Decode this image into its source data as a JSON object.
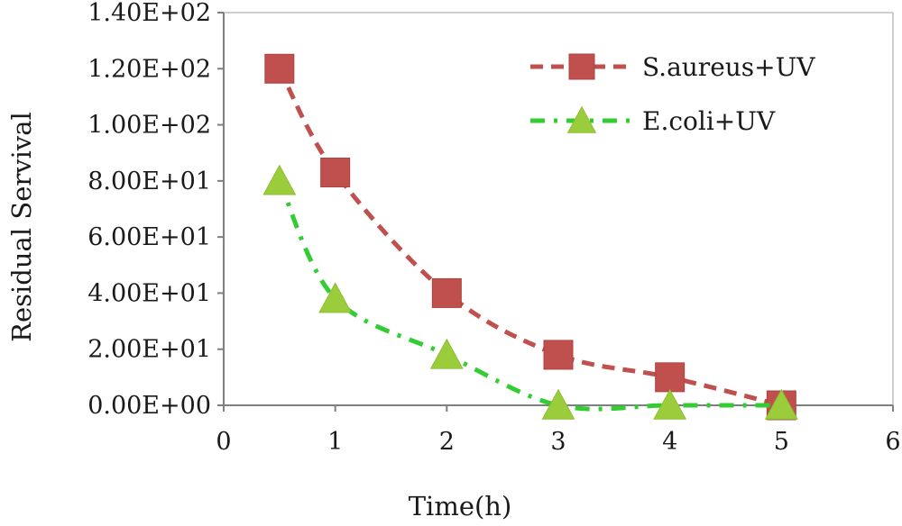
{
  "chart_data": {
    "type": "line",
    "title": "",
    "xlabel": "Time(h)",
    "ylabel": "Residual Servival",
    "xlim": [
      0,
      6
    ],
    "ylim": [
      0,
      140
    ],
    "x_ticks": [
      0,
      1,
      2,
      3,
      4,
      5,
      6
    ],
    "x_tick_labels": [
      "0",
      "1",
      "2",
      "3",
      "4",
      "5",
      "6"
    ],
    "y_ticks": [
      0,
      20,
      40,
      60,
      80,
      100,
      120,
      140
    ],
    "y_tick_labels": [
      "0.00E+00",
      "2.00E+01",
      "4.00E+01",
      "6.00E+01",
      "8.00E+01",
      "1.00E+02",
      "1.20E+02",
      "1.40E+02"
    ],
    "grid": false,
    "legend_position": "top-right",
    "series": [
      {
        "name": "S.aureus+UV",
        "color": "#c0504d",
        "marker": "square",
        "line_style": "dashed",
        "x": [
          0.5,
          1,
          2,
          3,
          4,
          5
        ],
        "y": [
          120,
          83,
          40,
          18,
          10,
          0
        ]
      },
      {
        "name": "E.coli+UV",
        "color": "#9bcc3b",
        "line_color": "#33cc33",
        "marker": "triangle",
        "line_style": "dash-dot",
        "x": [
          0.5,
          1,
          2,
          3,
          4,
          5
        ],
        "y": [
          80,
          38,
          18,
          0,
          0,
          0
        ]
      }
    ]
  }
}
